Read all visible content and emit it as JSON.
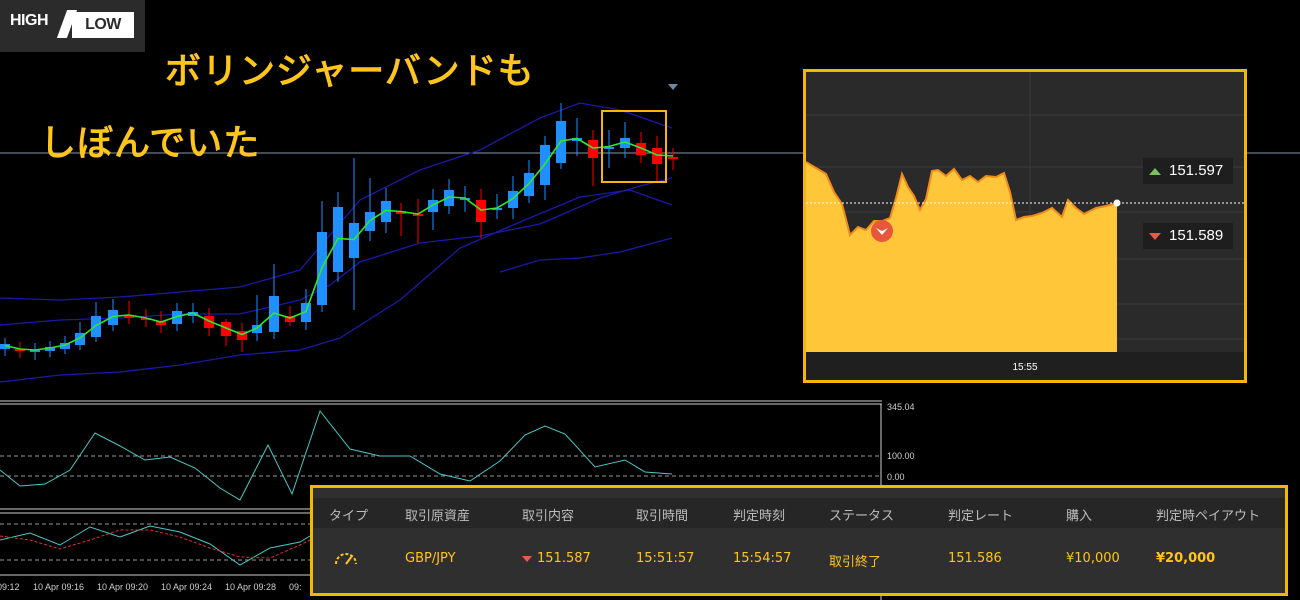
{
  "logo": {
    "high": "HIGH",
    "low": "LOW"
  },
  "headline": {
    "line1": "ボリンジャーバンドも",
    "line2": "しぼんでいた"
  },
  "oscillator_axis": [
    "345.04",
    "100.00",
    "0.00"
  ],
  "time_axis": [
    "09:12",
    "10 Apr 09:16",
    "10 Apr 09:20",
    "10 Apr 09:24",
    "10 Apr 09:28",
    "09:"
  ],
  "trade_chart": {
    "high_price": "151.597",
    "low_price": "151.589",
    "time_label": "15:55"
  },
  "trade_history": {
    "headers": [
      "タイプ",
      "取引原資産",
      "取引内容",
      "取引時間",
      "判定時刻",
      "ステータス",
      "判定レート",
      "購入",
      "判定時ペイアウト"
    ],
    "row": {
      "asset": "GBP/JPY",
      "content": "151.587",
      "trade_time": "15:51:57",
      "judgment_time": "15:54:57",
      "status": "取引終了",
      "judgment_rate": "151.586",
      "purchase": "¥10,000",
      "payout": "¥20,000"
    }
  },
  "colors": {
    "accent": "#ffc51a",
    "bull": "#1e90ff",
    "bear": "#ff0000",
    "band": "#1a1aa8",
    "ma": "#2ee82e"
  },
  "icons": {
    "type": "gauge-icon",
    "direction": "arrow-down-icon"
  }
}
